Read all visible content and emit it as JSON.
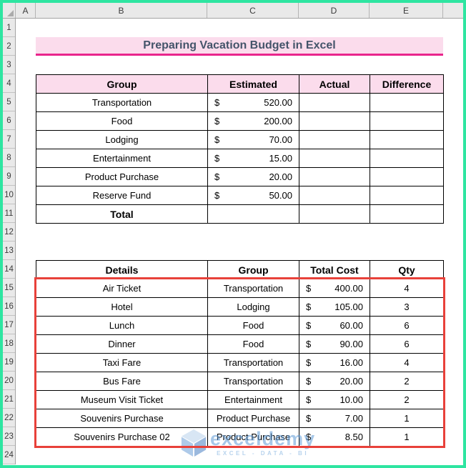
{
  "sheet": {
    "columns": [
      "A",
      "B",
      "C",
      "D",
      "E"
    ],
    "row_numbers": [
      "1",
      "2",
      "3",
      "4",
      "5",
      "6",
      "7",
      "8",
      "9",
      "10",
      "11",
      "12",
      "13",
      "14",
      "15",
      "16",
      "17",
      "18",
      "19",
      "20",
      "21",
      "22",
      "23",
      "24"
    ]
  },
  "title": {
    "text": "Preparing Vacation Budget in Excel"
  },
  "budget_table": {
    "currency_symbol": "$",
    "headers": {
      "group": "Group",
      "estimated": "Estimated",
      "actual": "Actual",
      "difference": "Difference"
    },
    "rows": [
      {
        "group": "Transportation",
        "estimated": "520.00"
      },
      {
        "group": "Food",
        "estimated": "200.00"
      },
      {
        "group": "Lodging",
        "estimated": "70.00"
      },
      {
        "group": "Entertainment",
        "estimated": "15.00"
      },
      {
        "group": "Product Purchase",
        "estimated": "20.00"
      },
      {
        "group": "Reserve Fund",
        "estimated": "50.00"
      }
    ],
    "total_label": "Total"
  },
  "details_table": {
    "currency_symbol": "$",
    "headers": {
      "details": "Details",
      "group": "Group",
      "total_cost": "Total Cost",
      "qty": "Qty"
    },
    "rows": [
      {
        "details": "Air Ticket",
        "group": "Transportation",
        "total_cost": "400.00",
        "qty": "4"
      },
      {
        "details": "Hotel",
        "group": "Lodging",
        "total_cost": "105.00",
        "qty": "3"
      },
      {
        "details": "Lunch",
        "group": "Food",
        "total_cost": "60.00",
        "qty": "6"
      },
      {
        "details": "Dinner",
        "group": "Food",
        "total_cost": "90.00",
        "qty": "6"
      },
      {
        "details": "Taxi Fare",
        "group": "Transportation",
        "total_cost": "16.00",
        "qty": "4"
      },
      {
        "details": "Bus Fare",
        "group": "Transportation",
        "total_cost": "20.00",
        "qty": "2"
      },
      {
        "details": "Museum Visit Ticket",
        "group": "Entertainment",
        "total_cost": "10.00",
        "qty": "2"
      },
      {
        "details": "Souvenirs Purchase",
        "group": "Product Purchase",
        "total_cost": "7.00",
        "qty": "1"
      },
      {
        "details": "Souvenirs Purchase 02",
        "group": "Product Purchase",
        "total_cost": "8.50",
        "qty": "1"
      }
    ]
  },
  "watermark": {
    "brand": "exceldemy",
    "tagline": "EXCEL - DATA - BI"
  },
  "colors": {
    "frame_green": "#2EE5A1",
    "header_pink": "#FBDCEC",
    "title_underline_magenta": "#E9258C",
    "title_text": "#44546A",
    "red_outline": "#E8413A",
    "watermark_blue": "#5E9AD6"
  }
}
